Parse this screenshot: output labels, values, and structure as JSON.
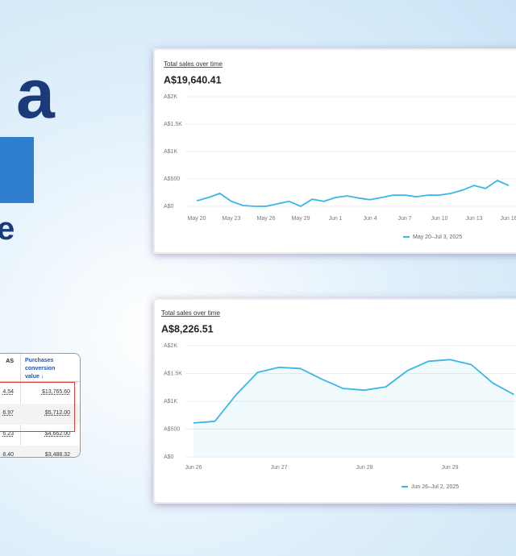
{
  "banner": {
    "line1": "a",
    "line3": "e"
  },
  "table": {
    "header": [
      "AS",
      "Purchases conversion value ↓"
    ],
    "rows": [
      [
        "4.54",
        "$13,765.60"
      ],
      [
        "6.97",
        "$5,712.00"
      ],
      [
        "6.23",
        "$4,662.00"
      ],
      [
        "8.40",
        "$3,488.32"
      ]
    ]
  },
  "chart_data": [
    {
      "type": "line",
      "title": "Total sales over time",
      "total": "A$19,640.41",
      "categories": [
        "May 20",
        null,
        null,
        "May 23",
        null,
        null,
        "May 26",
        null,
        null,
        "May 29",
        null,
        null,
        "Jun 1",
        null,
        null,
        "Jun 4",
        null,
        null,
        "Jun 7",
        null,
        null,
        "Jun 10",
        null,
        null,
        "Jun 13",
        null,
        null,
        "Jun 16"
      ],
      "series": [
        {
          "name": "May 20–Jul 3, 2025",
          "color": "#3ab7e8",
          "values": [
            100,
            160,
            235,
            90,
            15,
            0,
            0,
            45,
            90,
            0,
            130,
            90,
            160,
            190,
            150,
            120,
            160,
            205,
            205,
            175,
            205,
            205,
            235,
            295,
            380,
            325,
            470,
            380
          ]
        }
      ],
      "ylim": [
        0,
        2000
      ],
      "yticks": [
        {
          "value": 0,
          "label": "A$0"
        },
        {
          "value": 500,
          "label": "A$500"
        },
        {
          "value": 1000,
          "label": "A$1K"
        },
        {
          "value": 1500,
          "label": "A$1.5K"
        },
        {
          "value": 2000,
          "label": "A$2K"
        }
      ],
      "grid": true
    },
    {
      "type": "area",
      "title": "Total sales over time",
      "total": "A$8,226.51",
      "categories": [
        "Jun 26",
        null,
        null,
        null,
        "Jun 27",
        null,
        null,
        null,
        "Jun 28",
        null,
        null,
        null,
        "Jun 29",
        null,
        null,
        null
      ],
      "series": [
        {
          "name": "Jun 26–Jul 2, 2025",
          "color": "#3ab7e8",
          "values": [
            610,
            640,
            1120,
            1520,
            1610,
            1590,
            1400,
            1230,
            1200,
            1260,
            1550,
            1720,
            1750,
            1660,
            1330,
            1120
          ]
        }
      ],
      "ylim": [
        0,
        2000
      ],
      "yticks": [
        {
          "value": 0,
          "label": "A$0"
        },
        {
          "value": 500,
          "label": "A$500"
        },
        {
          "value": 1000,
          "label": "A$1K"
        },
        {
          "value": 1500,
          "label": "A$1.5K"
        },
        {
          "value": 2000,
          "label": "A$2K"
        }
      ],
      "grid": true
    }
  ]
}
